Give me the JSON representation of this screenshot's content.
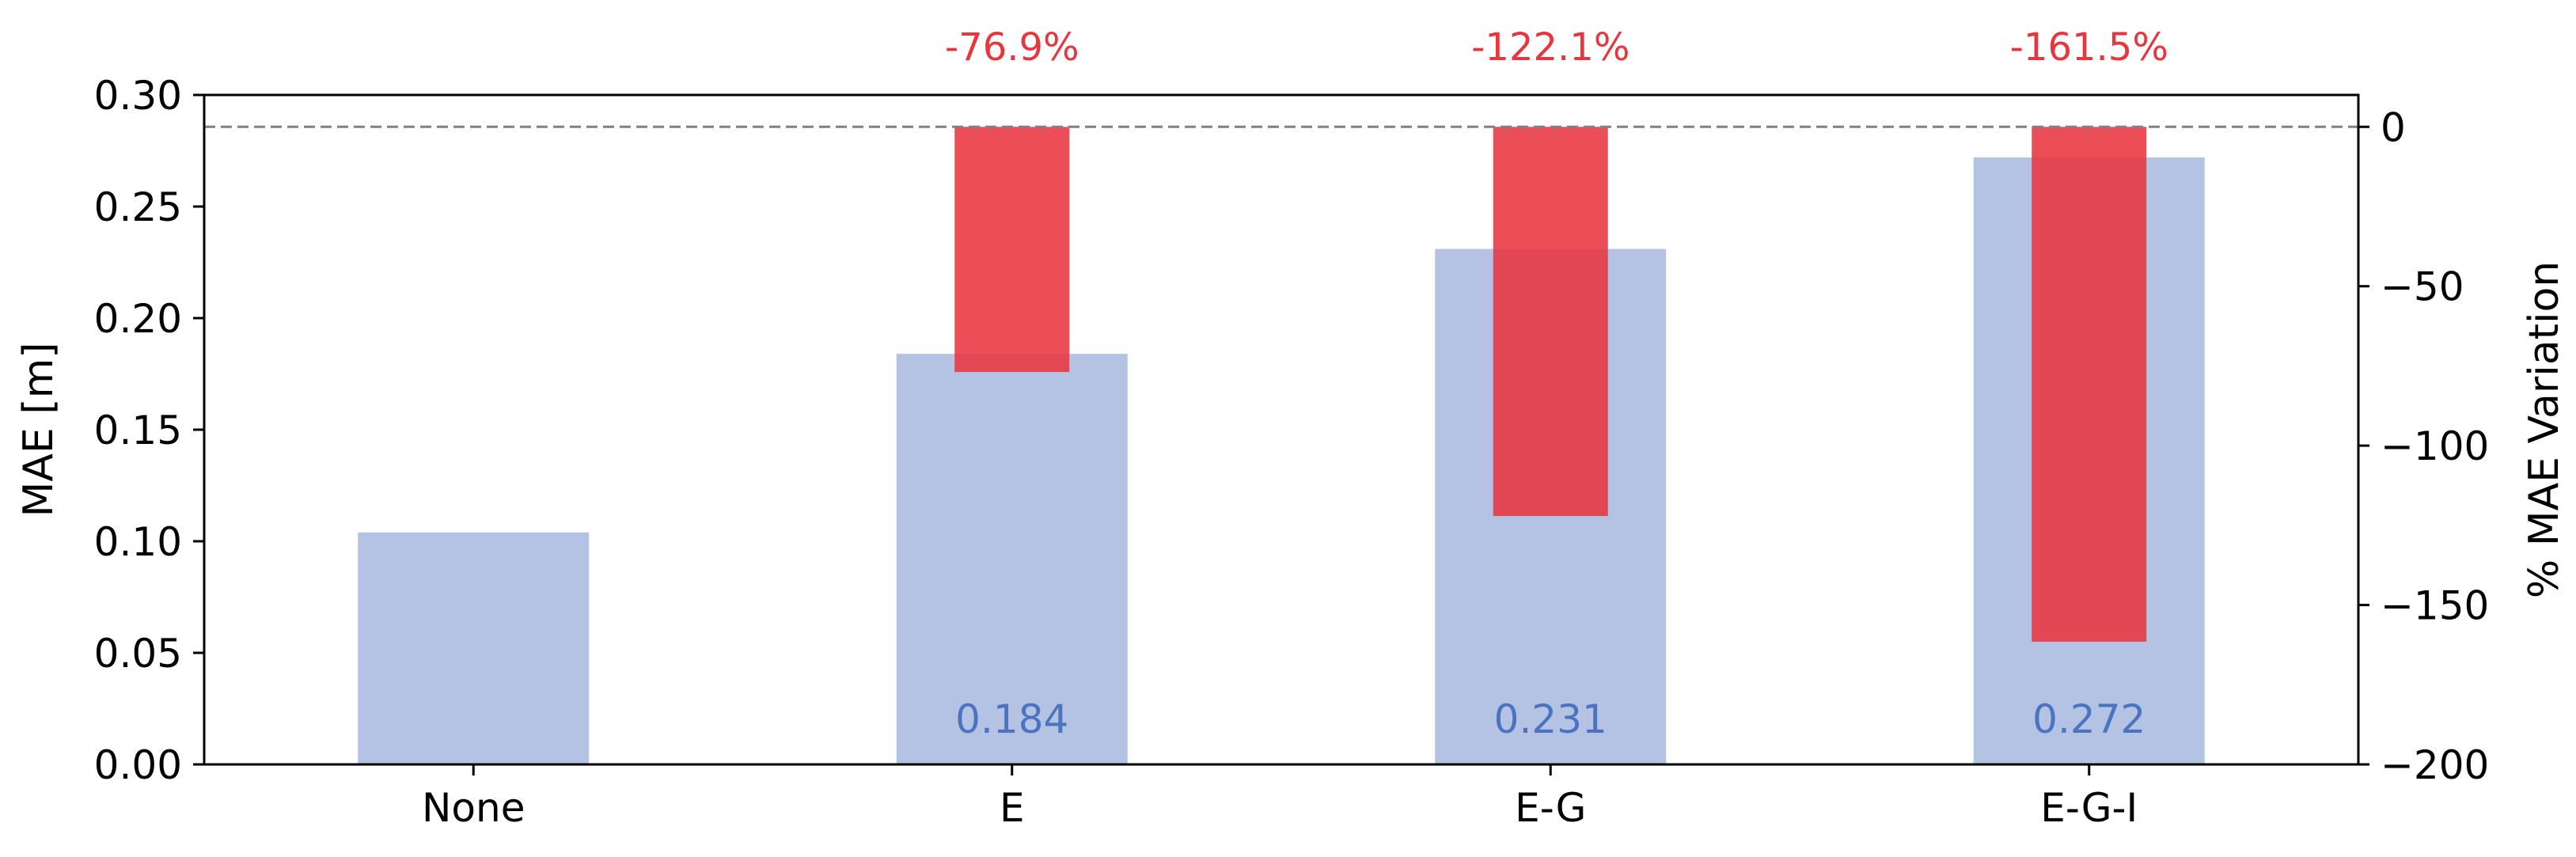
{
  "chart_data": {
    "type": "bar",
    "categories": [
      "None",
      "E",
      "E-G",
      "E-G-I"
    ],
    "series": [
      {
        "axis": "left",
        "values": [
          0.104,
          0.184,
          0.231,
          0.272
        ],
        "value_labels": [
          "",
          "0.184",
          "0.231",
          "0.272"
        ],
        "color": "#b4c3e3"
      },
      {
        "axis": "right",
        "values": [
          0,
          -76.9,
          -122.1,
          -161.5
        ],
        "value_labels": [
          "",
          "-76.9%",
          "-122.1%",
          "-161.5%"
        ],
        "color": "#e8363f"
      }
    ],
    "ylabel_left": "MAE [m]",
    "ylabel_right": "% MAE Variation",
    "ylim_left": [
      0,
      0.3
    ],
    "ylim_right": [
      -200,
      10
    ],
    "yticks_left": [
      "0.00",
      "0.05",
      "0.10",
      "0.15",
      "0.20",
      "0.25",
      "0.30"
    ],
    "yticks_right": [
      "0",
      "−50",
      "−100",
      "−150",
      "−200"
    ],
    "yticks_right_values": [
      0,
      -50,
      -100,
      -150,
      -200
    ],
    "yticks_left_values": [
      0,
      0.05,
      0.1,
      0.15,
      0.2,
      0.25,
      0.3
    ],
    "reference_line": {
      "axis": "right",
      "value": 0,
      "style": "dashed",
      "color": "#808080"
    },
    "value_label_color": "#4a74c0",
    "pct_label_color": "#e8363f",
    "grid": false
  }
}
